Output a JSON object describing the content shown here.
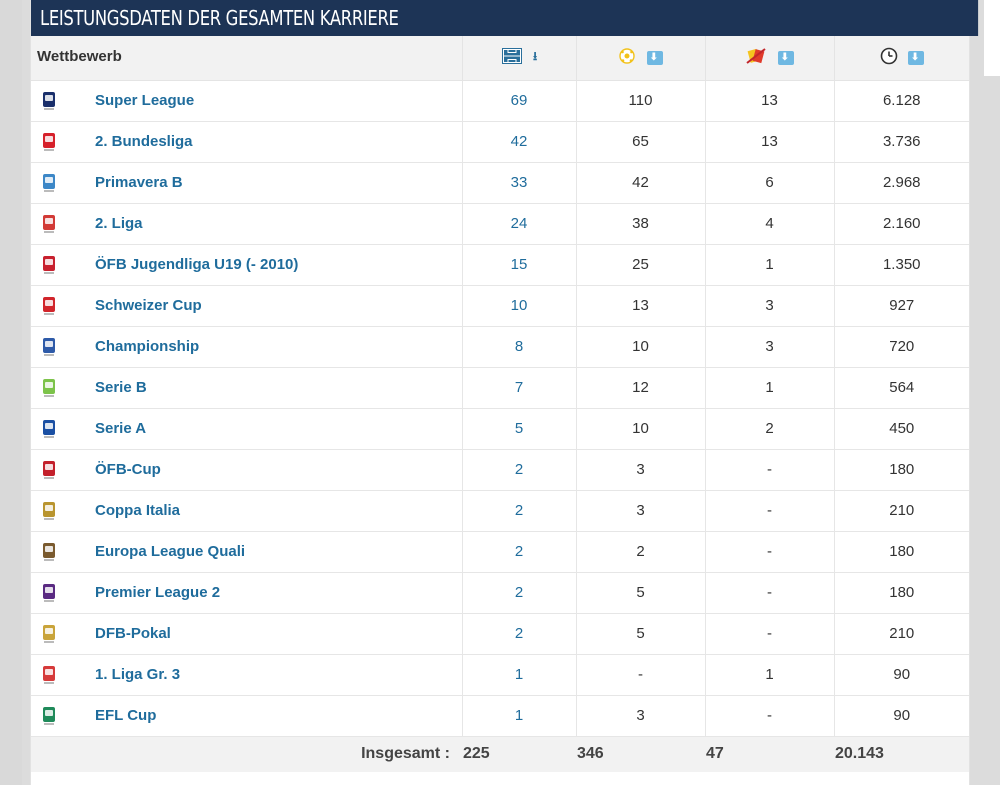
{
  "section_title": "LEISTUNGSDATEN DER GESAMTEN KARRIERE",
  "header": {
    "competition_label": "Wettbewerb",
    "appearances_icon": "pitch-icon",
    "goals_icon": "ball-icon",
    "cards_icon": "cards-icon",
    "minutes_icon": "clock-icon"
  },
  "rows": [
    {
      "name": "Super League",
      "apps": "69",
      "goals": "110",
      "cards": "13",
      "minutes": "6.128",
      "logo": "super-league-logo",
      "color": "#1a2f6b"
    },
    {
      "name": "2. Bundesliga",
      "apps": "42",
      "goals": "65",
      "cards": "13",
      "minutes": "3.736",
      "logo": "bundesliga-2-logo",
      "color": "#d6202a"
    },
    {
      "name": "Primavera B",
      "apps": "33",
      "goals": "42",
      "cards": "6",
      "minutes": "2.968",
      "logo": "primavera-b-logo",
      "color": "#3c87c7"
    },
    {
      "name": "2. Liga",
      "apps": "24",
      "goals": "38",
      "cards": "4",
      "minutes": "2.160",
      "logo": "liga-2-logo",
      "color": "#d23a36"
    },
    {
      "name": "ÖFB Jugendliga U19 (- 2010)",
      "apps": "15",
      "goals": "25",
      "cards": "1",
      "minutes": "1.350",
      "logo": "oefb-jugendliga-logo",
      "color": "#c8202e"
    },
    {
      "name": "Schweizer Cup",
      "apps": "10",
      "goals": "13",
      "cards": "3",
      "minutes": "927",
      "logo": "schweizer-cup-logo",
      "color": "#d1252b"
    },
    {
      "name": "Championship",
      "apps": "8",
      "goals": "10",
      "cards": "3",
      "minutes": "720",
      "logo": "championship-logo",
      "color": "#2e5aa8"
    },
    {
      "name": "Serie B",
      "apps": "7",
      "goals": "12",
      "cards": "1",
      "minutes": "564",
      "logo": "serie-b-logo",
      "color": "#7cc34a"
    },
    {
      "name": "Serie A",
      "apps": "5",
      "goals": "10",
      "cards": "2",
      "minutes": "450",
      "logo": "serie-a-logo",
      "color": "#1a4fa3"
    },
    {
      "name": "ÖFB-Cup",
      "apps": "2",
      "goals": "3",
      "cards": "-",
      "minutes": "180",
      "logo": "oefb-cup-logo",
      "color": "#c3202b"
    },
    {
      "name": "Coppa Italia",
      "apps": "2",
      "goals": "3",
      "cards": "-",
      "minutes": "210",
      "logo": "coppa-italia-logo",
      "color": "#b9952f"
    },
    {
      "name": "Europa League Quali",
      "apps": "2",
      "goals": "2",
      "cards": "-",
      "minutes": "180",
      "logo": "europa-league-logo",
      "color": "#7a5a2e"
    },
    {
      "name": "Premier League 2",
      "apps": "2",
      "goals": "5",
      "cards": "-",
      "minutes": "180",
      "logo": "premier-league-2-logo",
      "color": "#5a2a82"
    },
    {
      "name": "DFB-Pokal",
      "apps": "2",
      "goals": "5",
      "cards": "-",
      "minutes": "210",
      "logo": "dfb-pokal-logo",
      "color": "#c9a43a"
    },
    {
      "name": "1. Liga Gr. 3",
      "apps": "1",
      "goals": "-",
      "cards": "1",
      "minutes": "90",
      "logo": "liga-1-gr3-logo",
      "color": "#d63a3a"
    },
    {
      "name": "EFL Cup",
      "apps": "1",
      "goals": "3",
      "cards": "-",
      "minutes": "90",
      "logo": "efl-cup-logo",
      "color": "#1f8a5a"
    }
  ],
  "totals": {
    "label": "Insgesamt :",
    "apps": "225",
    "goals": "346",
    "cards": "47",
    "minutes": "20.143"
  }
}
